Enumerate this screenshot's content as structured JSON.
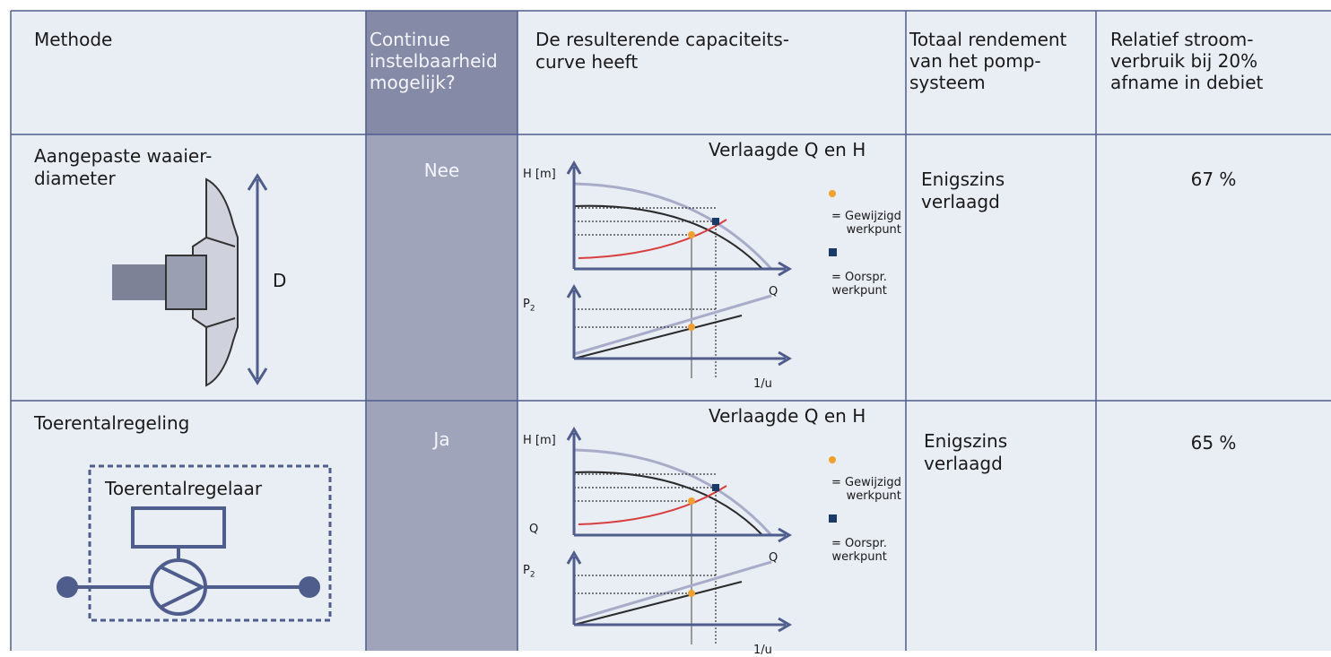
{
  "header": [
    "Methode",
    "Continue\ninstelbaarheid\nmogelijk?",
    "De resulterende capaciteits-\ncurve heeft",
    "Totaal rendement\nvan het pomp-\nsysteem",
    "Relatief stroom-\nverbruik bij 20%\nafname in debiet"
  ],
  "rows": [
    {
      "method": "Aangepaste waaier-\ndiameter",
      "diagram_label": "D",
      "adjustable": "Nee",
      "curve": {
        "title": "Verlaagde Q en H",
        "h_axis": "H [m]",
        "q_axis": "Q",
        "p_axis": [
          "P",
          "2"
        ],
        "t_axis": "1/u",
        "legend": [
          "= Gewijzigd\nwerkpunt",
          "= Oorspr.\nwerkpunt"
        ]
      },
      "efficiency": "Enigszins\nverlaagd",
      "power": "67 %"
    },
    {
      "method": "Toerentalregeling",
      "diagram_label": "Toerentalregelaar",
      "adjustable": "Ja",
      "curve": {
        "title": "Verlaagde Q en H",
        "h_axis": "H [m]",
        "q_axis": "Q",
        "q_left_axis": "Q",
        "p_axis": [
          "P",
          "2"
        ],
        "t_axis": "1/u",
        "legend": [
          "= Gewijzigd\nwerkpunt",
          "= Oorspr.\nwerkpunt"
        ]
      },
      "efficiency": "Enigszins\nverlaagd",
      "power": "65 %"
    }
  ]
}
